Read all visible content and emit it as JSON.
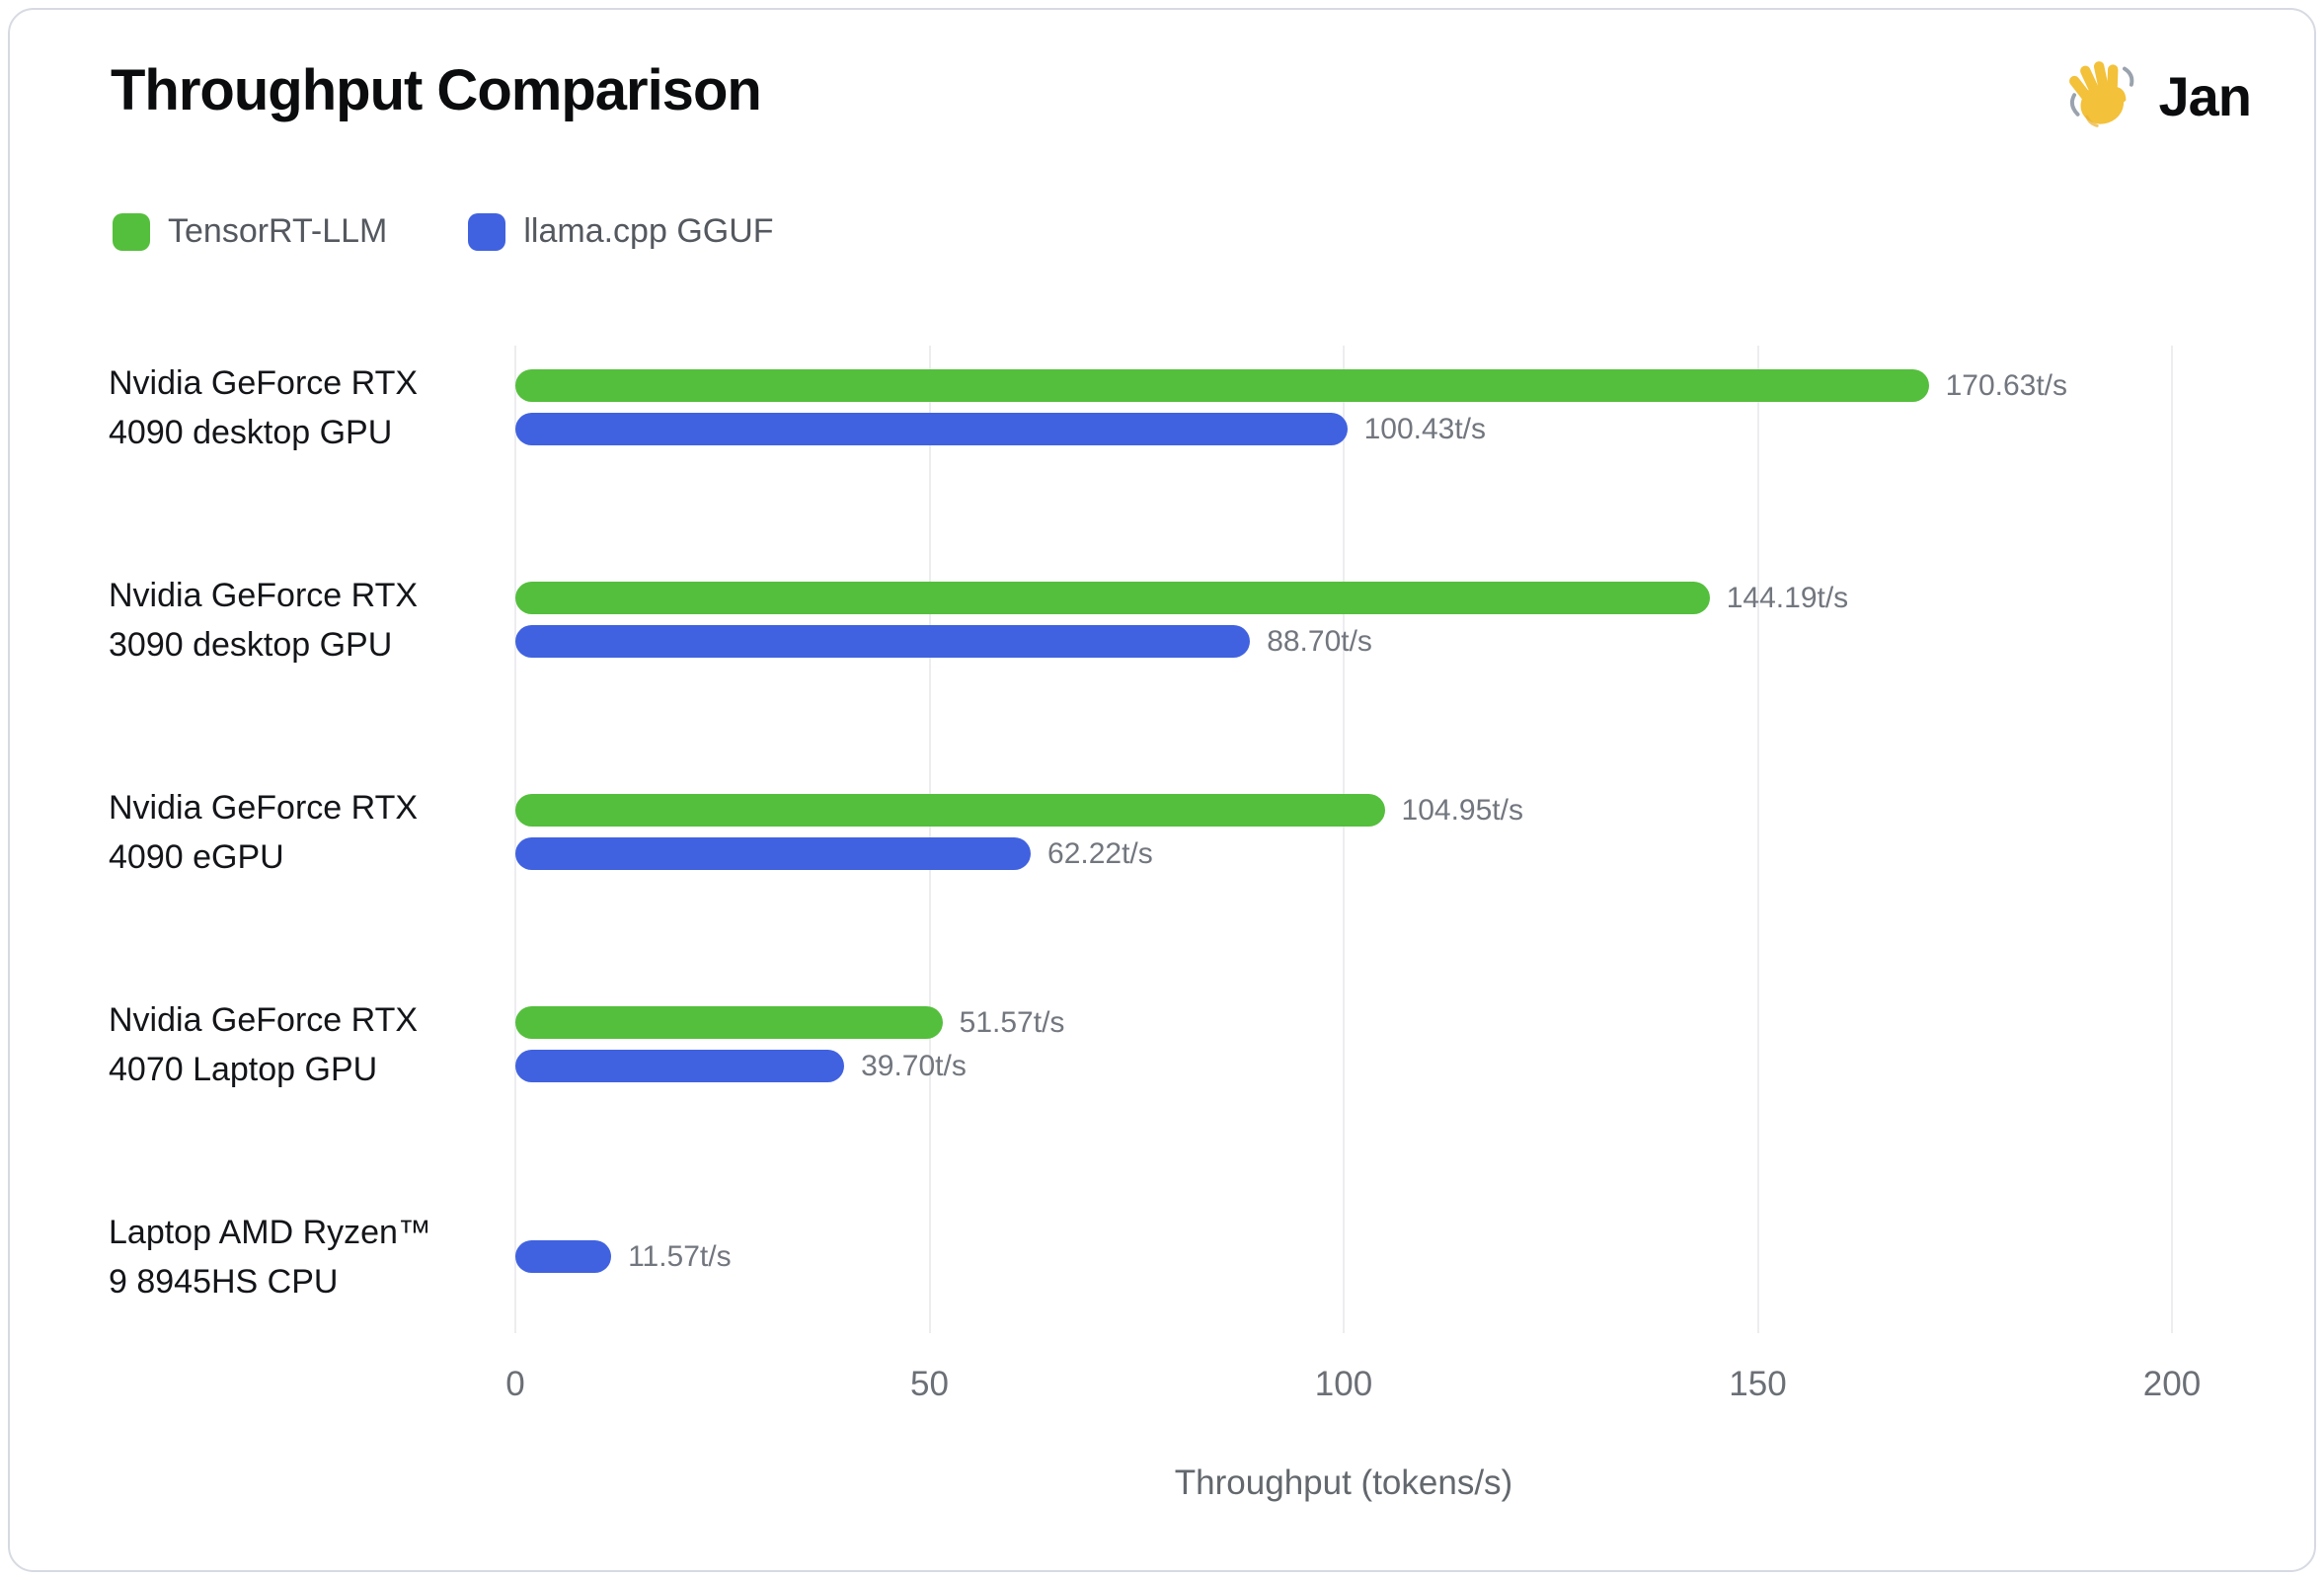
{
  "header": {
    "title": "Throughput Comparison",
    "logo": {
      "icon": "waving-hand-icon",
      "text": "Jan"
    }
  },
  "chart_data": {
    "type": "bar",
    "orientation": "horizontal",
    "title": "Throughput Comparison",
    "xlabel": "Throughput (tokens/s)",
    "xlim": [
      0,
      200
    ],
    "xticks": [
      "0",
      "50",
      "100",
      "150",
      "200"
    ],
    "grid": true,
    "legend_position": "top-left",
    "series": [
      {
        "name": "TensorRT-LLM",
        "color": "#54BF3C"
      },
      {
        "name": "llama.cpp GGUF",
        "color": "#4062E0"
      }
    ],
    "categories": [
      "Nvidia GeForce RTX 4090 desktop GPU",
      "Nvidia GeForce RTX 3090 desktop GPU",
      "Nvidia GeForce RTX 4090 eGPU",
      "Nvidia GeForce RTX 4070 Laptop GPU",
      "Laptop AMD Ryzen™ 9 8945HS CPU"
    ],
    "rows": [
      {
        "label_lines": [
          "Nvidia GeForce RTX",
          "4090 desktop GPU"
        ],
        "bars": [
          {
            "series": "TensorRT-LLM",
            "value": 170.63,
            "label": "170.63t/s"
          },
          {
            "series": "llama.cpp GGUF",
            "value": 100.43,
            "label": "100.43t/s"
          }
        ]
      },
      {
        "label_lines": [
          "Nvidia GeForce RTX",
          "3090 desktop GPU"
        ],
        "bars": [
          {
            "series": "TensorRT-LLM",
            "value": 144.19,
            "label": "144.19t/s"
          },
          {
            "series": "llama.cpp GGUF",
            "value": 88.7,
            "label": "88.70t/s"
          }
        ]
      },
      {
        "label_lines": [
          "Nvidia GeForce RTX",
          "4090 eGPU"
        ],
        "bars": [
          {
            "series": "TensorRT-LLM",
            "value": 104.95,
            "label": "104.95t/s"
          },
          {
            "series": "llama.cpp GGUF",
            "value": 62.22,
            "label": "62.22t/s"
          }
        ]
      },
      {
        "label_lines": [
          "Nvidia GeForce RTX",
          "4070 Laptop GPU"
        ],
        "bars": [
          {
            "series": "TensorRT-LLM",
            "value": 51.57,
            "label": "51.57t/s"
          },
          {
            "series": "llama.cpp GGUF",
            "value": 39.7,
            "label": "39.70t/s"
          }
        ]
      },
      {
        "label_lines": [
          "Laptop AMD Ryzen™",
          "9 8945HS CPU"
        ],
        "bars": [
          {
            "series": "llama.cpp GGUF",
            "value": 11.57,
            "label": "11.57t/s"
          }
        ]
      }
    ]
  }
}
